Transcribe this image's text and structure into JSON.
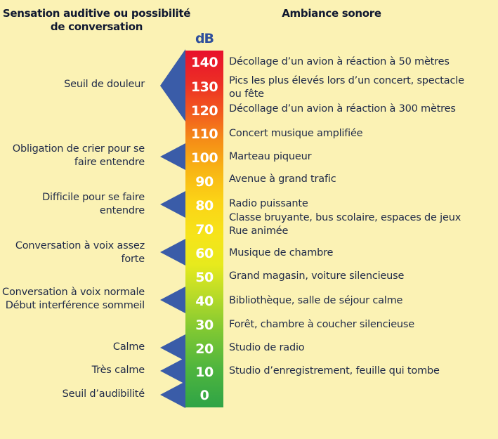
{
  "header": {
    "left_title": "Sensation auditive ou possibilité de conversation",
    "right_title": "Ambiance sonore"
  },
  "scale": {
    "unit": "dB",
    "levels": [
      "140",
      "130",
      "120",
      "110",
      "100",
      "90",
      "80",
      "70",
      "60",
      "50",
      "40",
      "30",
      "20",
      "10",
      "0"
    ]
  },
  "ambiances": [
    "Décollage d’un avion à réaction à 50 mètres",
    "Pics les plus élevés lors d’un concert, spectacle ou fête",
    "Décollage d’un avion à réaction à 300 mètres",
    "Concert musique amplifiée",
    "Marteau piqueur",
    "Avenue à grand trafic",
    "Radio puissante",
    "Classe  bruyante, bus scolaire, espaces de jeux",
    "Rue animée",
    "Musique de chambre",
    "Grand magasin, voiture silencieuse",
    "Bibliothèque, salle de séjour calme",
    "Forêt, chambre à coucher silencieuse",
    "Studio de radio",
    "Studio d’enregistrement, feuille qui tombe"
  ],
  "sensations": [
    "Seuil de douleur",
    "Obligation de crier pour se faire entendre",
    "Difficile pour se faire entendre",
    "Conversation à voix assez forte",
    "Conversation à voix normale\nDébut interférence sommeil",
    "Calme",
    "Très calme",
    "Seuil d’audibilité"
  ],
  "colors": {
    "background": "#fbf2b4",
    "arrow": "#3a5ca8",
    "bar_top": "#e8102c",
    "bar_middle": "#f6e41a",
    "bar_bottom": "#2fa446"
  }
}
